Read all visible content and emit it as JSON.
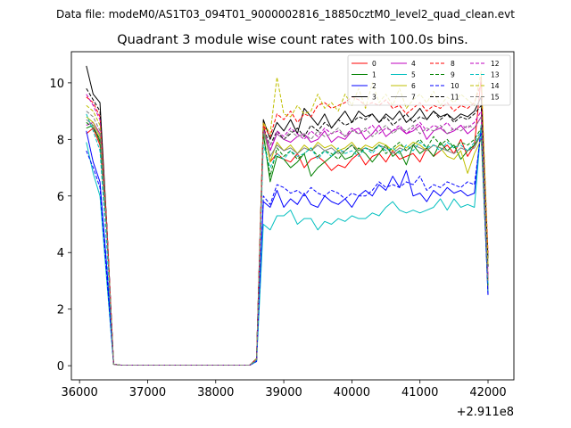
{
  "chart_data": {
    "type": "line",
    "suptitle": "Data file: modeM0/AS1T03_094T01_9000002816_18850cztM0_level2_quad_clean.evt",
    "title": "Quadrant 3 module wise count rates with 100.0s bins.",
    "xlabel": "",
    "ylabel": "",
    "x_offset_label": "+2.911e8",
    "xlim": [
      35880,
      42380
    ],
    "ylim": [
      -0.5,
      11.1
    ],
    "x_ticks": [
      36000,
      37000,
      38000,
      39000,
      40000,
      41000,
      42000
    ],
    "x_tick_labels": [
      "36000",
      "37000",
      "38000",
      "39000",
      "40000",
      "41000",
      "42000"
    ],
    "y_ticks": [
      0,
      2,
      4,
      6,
      8,
      10
    ],
    "y_tick_labels": [
      "0",
      "2",
      "4",
      "6",
      "8",
      "10"
    ],
    "legend_position": "top-right",
    "gap_end_x": 38600,
    "x_start": 36100,
    "x_step": 100,
    "series": [
      {
        "name": "0",
        "color": "#ff0000",
        "dashed": false,
        "values": [
          8.2,
          8.4,
          7.8,
          4.8,
          0.05,
          0.02,
          0.02,
          0.02,
          0.02,
          0.02,
          0.02,
          0.02,
          0.02,
          0.02,
          0.02,
          0.02,
          0.02,
          0.02,
          0.02,
          0.02,
          0.02,
          0.02,
          0.02,
          0.02,
          0.02,
          0.2,
          8.6,
          7.2,
          7.5,
          7.3,
          7.2,
          7.5,
          7.0,
          7.3,
          7.4,
          7.2,
          6.9,
          7.1,
          7.0,
          7.3,
          7.5,
          7.1,
          7.4,
          7.5,
          7.2,
          7.6,
          7.3,
          7.4,
          7.5,
          7.2,
          7.7,
          7.4,
          7.6,
          7.8,
          7.5,
          8.0,
          7.4,
          7.8,
          10.2,
          3.0
        ]
      },
      {
        "name": "1",
        "color": "#008000",
        "dashed": false,
        "values": [
          8.4,
          8.5,
          7.9,
          4.8,
          0.05,
          0.02,
          0.02,
          0.02,
          0.02,
          0.02,
          0.02,
          0.02,
          0.02,
          0.02,
          0.02,
          0.02,
          0.02,
          0.02,
          0.02,
          0.02,
          0.02,
          0.02,
          0.02,
          0.02,
          0.02,
          0.2,
          8.2,
          6.5,
          7.4,
          7.3,
          7.0,
          7.2,
          7.5,
          6.7,
          7.0,
          7.2,
          7.4,
          7.6,
          7.3,
          7.4,
          7.7,
          7.5,
          7.2,
          7.5,
          7.8,
          7.4,
          7.6,
          7.1,
          7.8,
          7.5,
          7.7,
          7.4,
          7.9,
          7.6,
          7.8,
          7.3,
          7.6,
          7.8,
          8.2,
          2.6
        ]
      },
      {
        "name": "2",
        "color": "#0000ff",
        "dashed": false,
        "values": [
          8.3,
          7.2,
          6.5,
          3.5,
          0.05,
          0.02,
          0.02,
          0.02,
          0.02,
          0.02,
          0.02,
          0.02,
          0.02,
          0.02,
          0.02,
          0.02,
          0.02,
          0.02,
          0.02,
          0.02,
          0.02,
          0.02,
          0.02,
          0.02,
          0.02,
          0.15,
          5.8,
          5.6,
          6.2,
          5.6,
          5.9,
          5.7,
          6.1,
          5.7,
          5.6,
          6.0,
          5.8,
          5.7,
          5.9,
          5.6,
          6.0,
          6.2,
          6.0,
          6.4,
          6.2,
          6.7,
          6.3,
          6.9,
          6.0,
          6.1,
          5.8,
          6.2,
          6.0,
          6.3,
          6.1,
          6.2,
          6.0,
          6.1,
          8.5,
          2.5
        ]
      },
      {
        "name": "3",
        "color": "#000000",
        "dashed": false,
        "values": [
          10.6,
          9.6,
          9.3,
          5.0,
          0.05,
          0.02,
          0.02,
          0.02,
          0.02,
          0.02,
          0.02,
          0.02,
          0.02,
          0.02,
          0.02,
          0.02,
          0.02,
          0.02,
          0.02,
          0.02,
          0.02,
          0.02,
          0.02,
          0.02,
          0.02,
          0.25,
          8.7,
          8.0,
          8.6,
          8.3,
          8.7,
          8.2,
          9.1,
          8.8,
          8.5,
          8.9,
          8.4,
          8.7,
          9.0,
          8.6,
          9.0,
          8.8,
          8.9,
          8.6,
          8.9,
          8.7,
          9.0,
          8.6,
          8.8,
          9.1,
          8.7,
          9.0,
          8.8,
          8.9,
          8.7,
          8.9,
          8.8,
          9.0,
          9.5,
          3.8
        ]
      },
      {
        "name": "4",
        "color": "#bf00bf",
        "dashed": false,
        "values": [
          8.5,
          8.6,
          8.2,
          5.0,
          0.05,
          0.02,
          0.02,
          0.02,
          0.02,
          0.02,
          0.02,
          0.02,
          0.02,
          0.02,
          0.02,
          0.02,
          0.02,
          0.02,
          0.02,
          0.02,
          0.02,
          0.02,
          0.02,
          0.02,
          0.02,
          0.2,
          8.4,
          7.6,
          8.2,
          8.0,
          7.9,
          8.1,
          8.2,
          7.9,
          8.0,
          8.3,
          7.9,
          8.1,
          8.0,
          8.3,
          8.4,
          8.0,
          8.2,
          8.5,
          8.1,
          8.3,
          8.4,
          8.2,
          8.3,
          8.5,
          8.0,
          8.3,
          8.4,
          8.2,
          8.3,
          8.5,
          8.2,
          8.4,
          8.8,
          2.6
        ]
      },
      {
        "name": "5",
        "color": "#00bfbf",
        "dashed": false,
        "values": [
          7.9,
          6.8,
          6.0,
          3.0,
          0.05,
          0.02,
          0.02,
          0.02,
          0.02,
          0.02,
          0.02,
          0.02,
          0.02,
          0.02,
          0.02,
          0.02,
          0.02,
          0.02,
          0.02,
          0.02,
          0.02,
          0.02,
          0.02,
          0.02,
          0.02,
          0.15,
          5.0,
          4.8,
          5.3,
          5.3,
          5.5,
          5.0,
          5.2,
          5.2,
          4.8,
          5.1,
          5.0,
          5.2,
          5.1,
          5.3,
          5.2,
          5.2,
          5.4,
          5.3,
          5.6,
          5.8,
          5.5,
          5.4,
          5.5,
          5.4,
          5.5,
          5.6,
          5.9,
          5.5,
          5.9,
          5.6,
          5.7,
          5.6,
          8.5,
          2.6
        ]
      },
      {
        "name": "6",
        "color": "#bfbf00",
        "dashed": false,
        "values": [
          8.8,
          8.6,
          8.1,
          4.8,
          0.05,
          0.02,
          0.02,
          0.02,
          0.02,
          0.02,
          0.02,
          0.02,
          0.02,
          0.02,
          0.02,
          0.02,
          0.02,
          0.02,
          0.02,
          0.02,
          0.02,
          0.02,
          0.02,
          0.02,
          0.02,
          0.2,
          8.5,
          7.2,
          7.9,
          7.6,
          7.8,
          7.5,
          7.8,
          7.6,
          7.9,
          7.7,
          7.8,
          7.6,
          7.7,
          7.9,
          7.6,
          7.8,
          7.7,
          7.9,
          7.8,
          7.6,
          7.8,
          7.7,
          7.9,
          7.8,
          7.6,
          7.8,
          7.7,
          7.4,
          7.3,
          7.6,
          6.8,
          7.5,
          8.0,
          2.7
        ]
      },
      {
        "name": "7",
        "color": "#808080",
        "dashed": false,
        "values": [
          8.7,
          8.5,
          8.0,
          4.8,
          0.05,
          0.02,
          0.02,
          0.02,
          0.02,
          0.02,
          0.02,
          0.02,
          0.02,
          0.02,
          0.02,
          0.02,
          0.02,
          0.02,
          0.02,
          0.02,
          0.02,
          0.02,
          0.02,
          0.02,
          0.02,
          0.2,
          8.3,
          7.4,
          7.8,
          7.6,
          7.7,
          7.5,
          7.7,
          7.6,
          7.8,
          7.6,
          7.7,
          7.5,
          7.6,
          7.8,
          7.6,
          7.7,
          7.6,
          7.8,
          7.7,
          7.5,
          7.7,
          7.6,
          7.8,
          7.7,
          7.6,
          7.8,
          7.7,
          7.6,
          7.5,
          7.7,
          7.6,
          7.7,
          8.2,
          2.7
        ]
      },
      {
        "name": "8",
        "color": "#ff0000",
        "dashed": true,
        "values": [
          9.5,
          9.3,
          8.8,
          5.0,
          0.05,
          0.02,
          0.02,
          0.02,
          0.02,
          0.02,
          0.02,
          0.02,
          0.02,
          0.02,
          0.02,
          0.02,
          0.02,
          0.02,
          0.02,
          0.02,
          0.02,
          0.02,
          0.02,
          0.02,
          0.02,
          0.25,
          8.5,
          8.1,
          8.9,
          8.7,
          9.0,
          8.6,
          8.9,
          8.8,
          9.2,
          9.3,
          9.1,
          9.2,
          9.3,
          9.5,
          9.4,
          9.2,
          9.3,
          9.2,
          9.4,
          9.1,
          9.2,
          8.9,
          9.1,
          9.3,
          9.0,
          9.2,
          9.1,
          9.3,
          9.0,
          9.2,
          9.1,
          9.3,
          10.0,
          4.0
        ]
      },
      {
        "name": "9",
        "color": "#008000",
        "dashed": true,
        "values": [
          8.6,
          8.4,
          8.0,
          4.8,
          0.05,
          0.02,
          0.02,
          0.02,
          0.02,
          0.02,
          0.02,
          0.02,
          0.02,
          0.02,
          0.02,
          0.02,
          0.02,
          0.02,
          0.02,
          0.02,
          0.02,
          0.02,
          0.02,
          0.02,
          0.02,
          0.2,
          8.2,
          6.7,
          7.7,
          7.4,
          7.6,
          7.3,
          7.5,
          7.7,
          7.4,
          7.6,
          7.5,
          7.3,
          7.6,
          7.8,
          7.5,
          7.7,
          7.6,
          7.8,
          7.5,
          7.7,
          7.9,
          7.6,
          7.8,
          8.0,
          7.7,
          8.1,
          7.8,
          8.0,
          7.7,
          7.9,
          7.8,
          8.0,
          8.4,
          2.8
        ]
      },
      {
        "name": "10",
        "color": "#0000ff",
        "dashed": true,
        "values": [
          7.6,
          7.0,
          6.3,
          3.2,
          0.05,
          0.02,
          0.02,
          0.02,
          0.02,
          0.02,
          0.02,
          0.02,
          0.02,
          0.02,
          0.02,
          0.02,
          0.02,
          0.02,
          0.02,
          0.02,
          0.02,
          0.02,
          0.02,
          0.02,
          0.02,
          0.15,
          6.0,
          5.7,
          6.4,
          6.3,
          6.1,
          6.2,
          6.0,
          6.3,
          6.1,
          6.0,
          6.2,
          6.1,
          5.9,
          6.1,
          6.0,
          6.0,
          6.2,
          6.5,
          6.3,
          6.4,
          6.3,
          6.5,
          6.4,
          6.7,
          6.2,
          6.4,
          6.3,
          6.5,
          6.4,
          6.3,
          6.5,
          6.4,
          8.3,
          2.5
        ]
      },
      {
        "name": "11",
        "color": "#000000",
        "dashed": true,
        "values": [
          9.8,
          9.4,
          9.0,
          5.0,
          0.05,
          0.02,
          0.02,
          0.02,
          0.02,
          0.02,
          0.02,
          0.02,
          0.02,
          0.02,
          0.02,
          0.02,
          0.02,
          0.02,
          0.02,
          0.02,
          0.02,
          0.02,
          0.02,
          0.02,
          0.02,
          0.25,
          8.4,
          7.8,
          8.3,
          8.0,
          8.2,
          8.4,
          8.1,
          8.5,
          8.3,
          8.6,
          8.4,
          8.7,
          8.5,
          8.6,
          8.8,
          8.7,
          8.9,
          8.6,
          8.8,
          8.5,
          8.7,
          8.9,
          8.6,
          8.8,
          8.7,
          9.0,
          8.7,
          8.9,
          8.6,
          8.8,
          8.7,
          8.9,
          9.2,
          3.5
        ]
      },
      {
        "name": "12",
        "color": "#bf00bf",
        "dashed": true,
        "values": [
          9.6,
          9.2,
          8.7,
          4.9,
          0.05,
          0.02,
          0.02,
          0.02,
          0.02,
          0.02,
          0.02,
          0.02,
          0.02,
          0.02,
          0.02,
          0.02,
          0.02,
          0.02,
          0.02,
          0.02,
          0.02,
          0.02,
          0.02,
          0.02,
          0.02,
          0.22,
          8.4,
          7.6,
          8.3,
          8.1,
          8.4,
          8.2,
          8.0,
          8.3,
          8.1,
          8.4,
          8.2,
          8.3,
          8.1,
          8.4,
          8.2,
          8.3,
          8.5,
          8.2,
          8.4,
          8.3,
          8.5,
          8.2,
          8.4,
          8.6,
          8.3,
          8.5,
          8.4,
          8.6,
          8.3,
          8.5,
          8.4,
          8.6,
          9.0,
          3.2
        ]
      },
      {
        "name": "13",
        "color": "#00bfbf",
        "dashed": true,
        "values": [
          8.9,
          8.3,
          7.6,
          4.2,
          0.05,
          0.02,
          0.02,
          0.02,
          0.02,
          0.02,
          0.02,
          0.02,
          0.02,
          0.02,
          0.02,
          0.02,
          0.02,
          0.02,
          0.02,
          0.02,
          0.02,
          0.02,
          0.02,
          0.02,
          0.02,
          0.2,
          7.8,
          7.0,
          7.5,
          7.3,
          7.6,
          7.4,
          7.5,
          7.7,
          7.3,
          7.6,
          7.4,
          7.7,
          7.5,
          7.6,
          7.4,
          7.7,
          7.5,
          7.8,
          7.6,
          7.7,
          7.5,
          7.8,
          7.6,
          7.9,
          7.7,
          7.8,
          7.6,
          7.9,
          7.7,
          7.8,
          7.6,
          7.9,
          8.3,
          2.9
        ]
      },
      {
        "name": "14",
        "color": "#bfbf00",
        "dashed": true,
        "values": [
          9.2,
          9.0,
          8.5,
          4.9,
          0.05,
          0.02,
          0.02,
          0.02,
          0.02,
          0.02,
          0.02,
          0.02,
          0.02,
          0.02,
          0.02,
          0.02,
          0.02,
          0.02,
          0.02,
          0.02,
          0.02,
          0.02,
          0.02,
          0.02,
          0.02,
          0.25,
          8.6,
          8.2,
          10.2,
          8.9,
          8.8,
          9.2,
          8.9,
          9.0,
          9.6,
          9.1,
          9.3,
          9.0,
          9.6,
          9.2,
          9.8,
          9.1,
          10.0,
          9.3,
          9.6,
          9.2,
          9.8,
          9.1,
          9.4,
          9.6,
          9.3,
          9.7,
          9.2,
          9.5,
          9.3,
          9.6,
          9.4,
          9.2,
          10.4,
          3.6
        ]
      },
      {
        "name": "15",
        "color": "#808080",
        "dashed": true,
        "values": [
          9.0,
          8.8,
          8.3,
          4.8,
          0.05,
          0.02,
          0.02,
          0.02,
          0.02,
          0.02,
          0.02,
          0.02,
          0.02,
          0.02,
          0.02,
          0.02,
          0.02,
          0.02,
          0.02,
          0.02,
          0.02,
          0.02,
          0.02,
          0.02,
          0.02,
          0.22,
          8.3,
          7.8,
          8.2,
          8.0,
          8.3,
          8.1,
          8.2,
          8.0,
          8.3,
          8.1,
          8.2,
          8.4,
          8.1,
          8.3,
          8.2,
          8.4,
          8.1,
          8.3,
          8.5,
          8.2,
          8.4,
          8.3,
          8.5,
          8.2,
          8.4,
          8.3,
          8.5,
          8.2,
          8.4,
          8.3,
          8.5,
          8.4,
          8.8,
          3.0
        ]
      }
    ]
  }
}
